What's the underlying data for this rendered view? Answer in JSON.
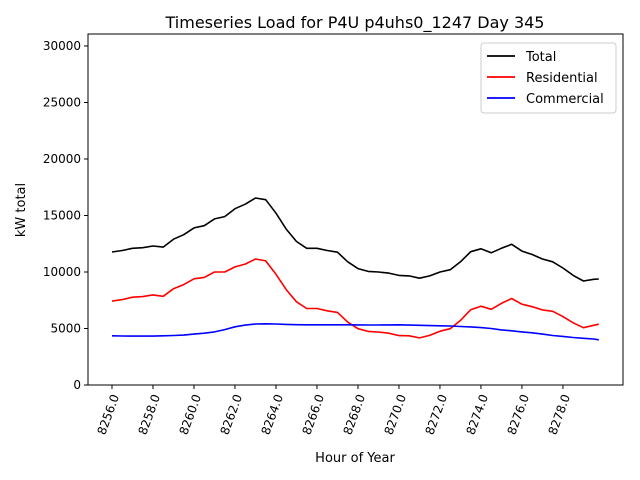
{
  "chart_data": {
    "type": "line",
    "title": "Timeseries Load for P4U p4uhs0_1247  Day 345",
    "xlabel": "Hour of Year",
    "ylabel": "kW total",
    "xlim": [
      8254.83,
      8280.93
    ],
    "ylim": [
      0,
      31060
    ],
    "xticks": [
      8256,
      8258,
      8260,
      8262,
      8264,
      8266,
      8268,
      8270,
      8272,
      8274,
      8276,
      8278
    ],
    "xtick_labels": [
      "8256.0",
      "8258.0",
      "8260.0",
      "8262.0",
      "8264.0",
      "8266.0",
      "8268.0",
      "8270.0",
      "8272.0",
      "8274.0",
      "8276.0",
      "8278.0"
    ],
    "yticks": [
      0,
      5000,
      10000,
      15000,
      20000,
      25000,
      30000
    ],
    "ytick_labels": [
      "0",
      "5000",
      "10000",
      "15000",
      "20000",
      "25000",
      "30000"
    ],
    "grid": false,
    "legend_position": "top-right",
    "x": [
      8256,
      8256.5,
      8257,
      8257.5,
      8258,
      8258.5,
      8259,
      8259.5,
      8260,
      8260.5,
      8261,
      8261.5,
      8262,
      8262.5,
      8263,
      8263.5,
      8264,
      8264.5,
      8265,
      8265.5,
      8266,
      8266.5,
      8267,
      8267.5,
      8268,
      8268.5,
      8269,
      8269.5,
      8270,
      8270.5,
      8271,
      8271.5,
      8272,
      8272.5,
      8273,
      8273.5,
      8274,
      8274.5,
      8275,
      8275.5,
      8276,
      8276.5,
      8277,
      8277.5,
      8278,
      8278.5,
      8279,
      8279.5,
      8279.75
    ],
    "series": [
      {
        "name": "Total",
        "color": "#000000",
        "values": [
          11770,
          11900,
          12100,
          12150,
          12300,
          12200,
          12900,
          13300,
          13900,
          14100,
          14700,
          14900,
          15600,
          16000,
          16550,
          16400,
          15200,
          13800,
          12700,
          12100,
          12100,
          11900,
          11750,
          10900,
          10300,
          10050,
          10000,
          9900,
          9700,
          9650,
          9450,
          9650,
          10000,
          10200,
          10900,
          11800,
          12050,
          11700,
          12100,
          12450,
          11850,
          11550,
          11150,
          10900,
          10350,
          9700,
          9200,
          9350,
          9380
        ]
      },
      {
        "name": "Residential",
        "color": "#ff0000",
        "values": [
          7420,
          7560,
          7770,
          7820,
          7970,
          7850,
          8520,
          8880,
          9400,
          9520,
          10000,
          10000,
          10450,
          10700,
          11150,
          10980,
          9800,
          8440,
          7360,
          6770,
          6770,
          6570,
          6420,
          5570,
          4980,
          4740,
          4690,
          4580,
          4370,
          4350,
          4170,
          4390,
          4760,
          4980,
          5720,
          6660,
          6970,
          6700,
          7220,
          7650,
          7150,
          6930,
          6650,
          6520,
          6050,
          5500,
          5070,
          5280,
          5380
        ]
      },
      {
        "name": "Commercial",
        "color": "#0000ff",
        "values": [
          4350,
          4340,
          4330,
          4330,
          4330,
          4350,
          4380,
          4420,
          4500,
          4580,
          4700,
          4900,
          5150,
          5300,
          5400,
          5420,
          5400,
          5360,
          5340,
          5330,
          5330,
          5330,
          5330,
          5330,
          5320,
          5310,
          5310,
          5320,
          5330,
          5300,
          5280,
          5260,
          5240,
          5220,
          5180,
          5140,
          5080,
          5000,
          4880,
          4800,
          4700,
          4620,
          4500,
          4380,
          4300,
          4200,
          4130,
          4070,
          4000
        ]
      }
    ]
  }
}
